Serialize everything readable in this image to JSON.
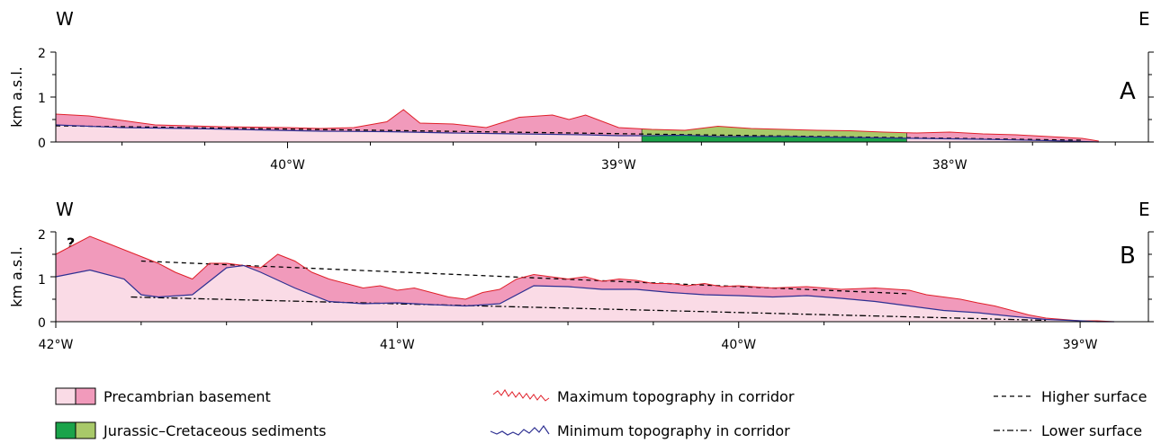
{
  "chart_data": [
    {
      "panel": "A",
      "type": "area",
      "west_label": "W",
      "east_label": "E",
      "panel_label": "A",
      "ylabel": "km a.s.l.",
      "yticks": [
        "0",
        "1",
        "2"
      ],
      "ylim": [
        0,
        2
      ],
      "xlim": [
        40.7,
        37.4
      ],
      "x_reversed": true,
      "xticks": [
        {
          "value": 40,
          "label": "40°W"
        },
        {
          "value": 39,
          "label": "39°W"
        },
        {
          "value": 38,
          "label": "38°W"
        }
      ],
      "series": [
        {
          "key": "max",
          "color": "#e0202a",
          "x": [
            40.7,
            40.6,
            40.5,
            40.4,
            40.3,
            40.2,
            40.1,
            40.0,
            39.9,
            39.8,
            39.7,
            39.65,
            39.6,
            39.5,
            39.4,
            39.3,
            39.2,
            39.15,
            39.1,
            39.0,
            38.9,
            38.8,
            38.7,
            38.6,
            38.5,
            38.4,
            38.3,
            38.2,
            38.1,
            38.0,
            37.9,
            37.8,
            37.7,
            37.6,
            37.55
          ],
          "values": [
            0.62,
            0.58,
            0.48,
            0.38,
            0.36,
            0.34,
            0.33,
            0.32,
            0.3,
            0.32,
            0.45,
            0.72,
            0.42,
            0.4,
            0.32,
            0.55,
            0.6,
            0.5,
            0.6,
            0.32,
            0.28,
            0.26,
            0.35,
            0.3,
            0.28,
            0.26,
            0.25,
            0.22,
            0.2,
            0.22,
            0.18,
            0.16,
            0.12,
            0.08,
            0.02
          ]
        },
        {
          "key": "min",
          "color": "#2e3092",
          "x": [
            40.7,
            40.5,
            40.3,
            40.1,
            39.9,
            39.7,
            39.5,
            39.3,
            39.1,
            39.0,
            38.9,
            38.8,
            38.7,
            38.5,
            38.3,
            38.1,
            37.9,
            37.7,
            37.6,
            37.55
          ],
          "values": [
            0.38,
            0.32,
            0.3,
            0.27,
            0.24,
            0.23,
            0.2,
            0.18,
            0.16,
            0.14,
            0.14,
            0.15,
            0.12,
            0.12,
            0.1,
            0.08,
            0.06,
            0.03,
            0.01,
            0.0
          ]
        }
      ],
      "higher_surface": {
        "x": [
          40.7,
          37.6
        ],
        "values": [
          0.36,
          0.04
        ]
      },
      "sediment_range": {
        "x_from": 38.93,
        "x_to": 38.13
      }
    },
    {
      "panel": "B",
      "type": "area",
      "west_label": "W",
      "east_label": "E",
      "panel_label": "B",
      "ylabel": "km a.s.l.",
      "yticks": [
        "0",
        "1",
        "2"
      ],
      "ylim": [
        0,
        2
      ],
      "xlim": [
        42.0,
        38.8
      ],
      "x_reversed": true,
      "xticks": [
        {
          "value": 42,
          "label": "42°W"
        },
        {
          "value": 41,
          "label": "41°W"
        },
        {
          "value": 40,
          "label": "40°W"
        },
        {
          "value": 39,
          "label": "39°W"
        }
      ],
      "question_marks": [
        "?",
        "?"
      ],
      "series": [
        {
          "key": "max",
          "color": "#e0202a",
          "x": [
            42.0,
            41.95,
            41.9,
            41.85,
            41.8,
            41.75,
            41.7,
            41.65,
            41.6,
            41.55,
            41.5,
            41.45,
            41.4,
            41.35,
            41.3,
            41.25,
            41.2,
            41.15,
            41.1,
            41.05,
            41.0,
            40.95,
            40.9,
            40.85,
            40.8,
            40.75,
            40.7,
            40.65,
            40.6,
            40.55,
            40.5,
            40.45,
            40.4,
            40.35,
            40.3,
            40.25,
            40.2,
            40.15,
            40.1,
            40.05,
            40.0,
            39.9,
            39.8,
            39.7,
            39.6,
            39.5,
            39.45,
            39.4,
            39.35,
            39.3,
            39.25,
            39.2,
            39.15,
            39.1,
            39.05,
            39.0,
            38.95,
            38.9
          ],
          "values": [
            1.5,
            1.7,
            1.9,
            1.75,
            1.6,
            1.45,
            1.3,
            1.1,
            0.95,
            1.3,
            1.3,
            1.25,
            1.2,
            1.5,
            1.35,
            1.1,
            0.95,
            0.85,
            0.75,
            0.8,
            0.7,
            0.75,
            0.65,
            0.55,
            0.5,
            0.65,
            0.72,
            0.95,
            1.05,
            1.0,
            0.95,
            1.0,
            0.9,
            0.95,
            0.92,
            0.85,
            0.85,
            0.8,
            0.85,
            0.78,
            0.8,
            0.75,
            0.78,
            0.72,
            0.75,
            0.7,
            0.6,
            0.55,
            0.5,
            0.42,
            0.35,
            0.25,
            0.15,
            0.08,
            0.05,
            0.02,
            0.02,
            0.0
          ]
        },
        {
          "key": "min",
          "color": "#2e3092",
          "x": [
            42.0,
            41.9,
            41.8,
            41.75,
            41.7,
            41.6,
            41.5,
            41.45,
            41.4,
            41.3,
            41.2,
            41.1,
            41.0,
            40.9,
            40.8,
            40.7,
            40.6,
            40.5,
            40.4,
            40.3,
            40.2,
            40.1,
            40.0,
            39.9,
            39.8,
            39.7,
            39.6,
            39.5,
            39.4,
            39.3,
            39.2,
            39.1,
            39.0,
            38.95,
            38.9
          ],
          "values": [
            1.0,
            1.15,
            0.95,
            0.6,
            0.55,
            0.6,
            1.2,
            1.25,
            1.1,
            0.75,
            0.45,
            0.4,
            0.42,
            0.38,
            0.35,
            0.4,
            0.8,
            0.78,
            0.72,
            0.72,
            0.65,
            0.6,
            0.58,
            0.55,
            0.58,
            0.52,
            0.45,
            0.35,
            0.25,
            0.2,
            0.12,
            0.05,
            0.02,
            0.0,
            0.0
          ]
        }
      ],
      "higher_surface": {
        "x": [
          41.75,
          39.5
        ],
        "values": [
          1.35,
          0.62
        ]
      },
      "lower_surface": {
        "x": [
          41.78,
          39.1
        ],
        "values": [
          0.55,
          0.03
        ]
      }
    }
  ],
  "legend": {
    "precambrian": "Precambrian basement",
    "jurassic": "Jurassic–Cretaceous sediments",
    "max_topo": "Maximum topography in corridor",
    "min_topo": "Minimum topography in corridor",
    "higher": "Higher surface",
    "lower": "Lower surface"
  },
  "colors": {
    "basement_light": "#fadbe6",
    "basement_pink": "#f19abb",
    "sed_dark": "#1aa34a",
    "sed_light": "#a8c969",
    "max_line": "#e0202a",
    "min_line": "#2e3092"
  }
}
